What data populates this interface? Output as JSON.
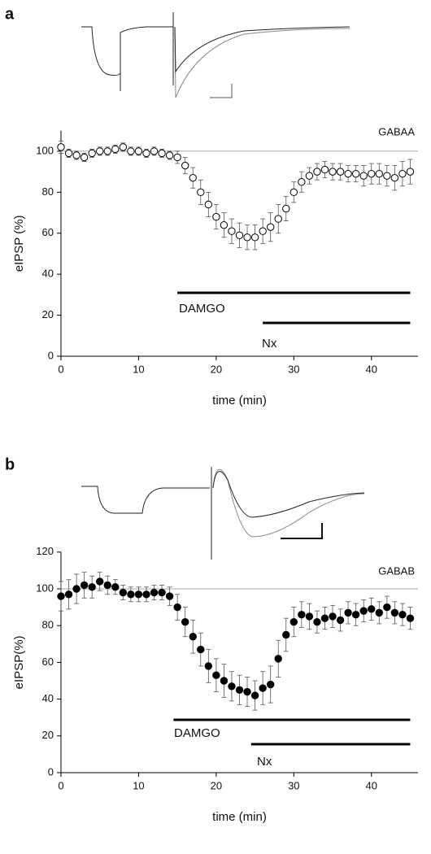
{
  "chart_data": [
    {
      "type": "scatter",
      "panel": "a",
      "ref_label": "GABAA",
      "xlabel": "time (min)",
      "ylabel": "eIPSP (%)",
      "x": [
        0,
        1,
        2,
        3,
        4,
        5,
        6,
        7,
        8,
        9,
        10,
        11,
        12,
        13,
        14,
        15,
        16,
        17,
        18,
        19,
        20,
        21,
        22,
        23,
        24,
        25,
        26,
        27,
        28,
        29,
        30,
        31,
        32,
        33,
        34,
        35,
        36,
        37,
        38,
        39,
        40,
        41,
        42,
        43,
        44,
        45
      ],
      "values": [
        102,
        99,
        98,
        97,
        99,
        100,
        100,
        101,
        102,
        100,
        100,
        99,
        100,
        99,
        98,
        97,
        93,
        87,
        80,
        74,
        68,
        64,
        61,
        59,
        58,
        58,
        61,
        63,
        67,
        72,
        80,
        85,
        88,
        90,
        91,
        90,
        90,
        89,
        89,
        88,
        89,
        89,
        88,
        87,
        89,
        90
      ],
      "errors": [
        3,
        2,
        2,
        2,
        2,
        2,
        2,
        2,
        2,
        2,
        2,
        2,
        2,
        2,
        2,
        3,
        4,
        5,
        6,
        6,
        6,
        6,
        6,
        6,
        6,
        6,
        6,
        7,
        7,
        6,
        5,
        5,
        4,
        4,
        4,
        4,
        4,
        4,
        4,
        5,
        5,
        5,
        5,
        6,
        6,
        6
      ],
      "marker_fill": "#ffffff",
      "color": "#000000",
      "ref_value": 100,
      "bars": [
        {
          "label": "DAMGO",
          "x": [
            15,
            45
          ]
        },
        {
          "label": "Nx",
          "x": [
            26,
            45
          ]
        }
      ],
      "xlim": [
        0,
        46
      ],
      "ylim": [
        0,
        110
      ],
      "xticks": [
        0,
        10,
        20,
        30,
        40
      ],
      "yticks": [
        0,
        20,
        40,
        60,
        80,
        100
      ]
    },
    {
      "type": "scatter",
      "panel": "b",
      "ref_label": "GABAB",
      "xlabel": "time (min)",
      "ylabel": "eIPSP(%)",
      "x": [
        0,
        1,
        2,
        3,
        4,
        5,
        6,
        7,
        8,
        9,
        10,
        11,
        12,
        13,
        14,
        15,
        16,
        17,
        18,
        19,
        20,
        21,
        22,
        23,
        24,
        25,
        26,
        27,
        28,
        29,
        30,
        31,
        32,
        33,
        34,
        35,
        36,
        37,
        38,
        39,
        40,
        41,
        42,
        43,
        44,
        45
      ],
      "values": [
        96,
        97,
        100,
        102,
        101,
        104,
        102,
        101,
        98,
        97,
        97,
        97,
        98,
        98,
        96,
        90,
        82,
        74,
        67,
        58,
        53,
        50,
        47,
        45,
        44,
        42,
        46,
        48,
        62,
        75,
        82,
        86,
        85,
        82,
        84,
        85,
        83,
        87,
        86,
        88,
        89,
        87,
        90,
        87,
        86,
        84
      ],
      "errors": [
        8,
        8,
        8,
        7,
        6,
        5,
        5,
        4,
        4,
        4,
        4,
        4,
        4,
        4,
        5,
        7,
        8,
        9,
        9,
        9,
        9,
        9,
        8,
        8,
        8,
        8,
        9,
        10,
        10,
        9,
        8,
        7,
        7,
        6,
        6,
        6,
        6,
        6,
        6,
        6,
        6,
        6,
        6,
        6,
        6,
        6
      ],
      "marker_fill": "#000000",
      "color": "#000000",
      "ref_value": 100,
      "bars": [
        {
          "label": "DAMGO",
          "x": [
            14.5,
            45
          ]
        },
        {
          "label": "Nx",
          "x": [
            24.5,
            45
          ]
        }
      ],
      "xlim": [
        0,
        46
      ],
      "ylim": [
        0,
        120
      ],
      "xticks": [
        0,
        10,
        20,
        30,
        40
      ],
      "yticks": [
        0,
        20,
        40,
        60,
        80,
        100,
        120
      ]
    }
  ]
}
